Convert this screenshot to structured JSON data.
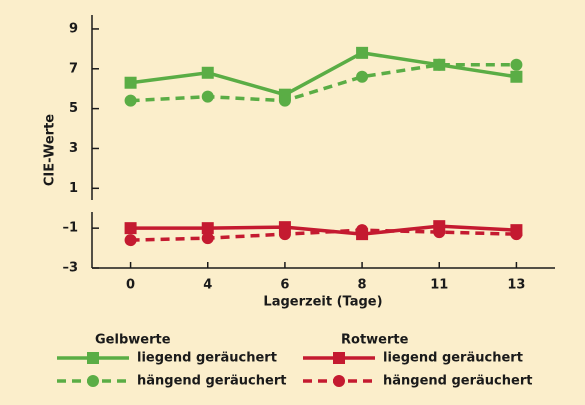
{
  "chart_data": {
    "type": "line",
    "y_label": "CIE-Werte",
    "x_label": "Lagerzeit (Tage)",
    "categories": [
      "0",
      "4",
      "6",
      "8",
      "11",
      "13"
    ],
    "ylim": [
      -3,
      9.7
    ],
    "yticks": [
      {
        "value": -3,
        "label": "–3"
      },
      {
        "value": -1,
        "label": "–1"
      },
      1,
      3,
      5,
      7,
      9
    ],
    "legend_titles": [
      "Gelbwerte",
      "Rotwerte"
    ],
    "series": [
      {
        "name": "liegend geräuchert",
        "color": "#5aad45",
        "marker": "square",
        "dashed": false,
        "group": 0,
        "values": [
          6.3,
          6.8,
          5.7,
          7.8,
          7.2,
          6.6
        ]
      },
      {
        "name": "hängend geräuchert",
        "color": "#5aad45",
        "marker": "circle",
        "dashed": true,
        "group": 0,
        "values": [
          5.4,
          5.6,
          5.4,
          6.6,
          7.2,
          7.2
        ]
      },
      {
        "name": "liegend geräuchert",
        "color": "#c41a30",
        "marker": "square",
        "dashed": false,
        "group": 1,
        "values": [
          -1.0,
          -1.0,
          -0.95,
          -1.3,
          -0.9,
          -1.1
        ]
      },
      {
        "name": "hängend geräuchert",
        "color": "#c41a30",
        "marker": "circle",
        "dashed": true,
        "group": 1,
        "values": [
          -1.6,
          -1.5,
          -1.3,
          -1.1,
          -1.2,
          -1.3
        ]
      }
    ]
  }
}
